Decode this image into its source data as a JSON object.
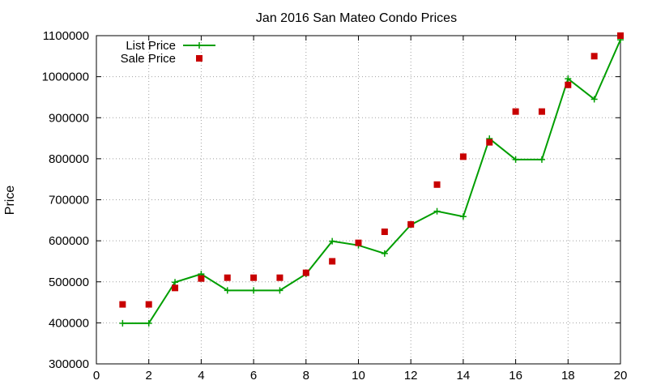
{
  "chart_data": {
    "type": "line",
    "title": "Jan 2016 San Mateo Condo Prices",
    "xlabel": "",
    "ylabel": "Price",
    "xlim": [
      0,
      20
    ],
    "ylim": [
      300000,
      1100000
    ],
    "xticks": [
      0,
      2,
      4,
      6,
      8,
      10,
      12,
      14,
      16,
      18,
      20
    ],
    "yticks": [
      300000,
      400000,
      500000,
      600000,
      700000,
      800000,
      900000,
      1000000,
      1100000
    ],
    "grid": true,
    "legend_position": "top-left",
    "series": [
      {
        "name": "List Price",
        "style": "lines+points",
        "marker": "plus",
        "color": "#009e00",
        "x": [
          1,
          2,
          3,
          4,
          5,
          6,
          7,
          8,
          9,
          10,
          11,
          12,
          13,
          14,
          15,
          16,
          17,
          18,
          19,
          20
        ],
        "y": [
          399000,
          399000,
          499000,
          519000,
          479000,
          479000,
          479000,
          519000,
          599000,
          589000,
          569000,
          639000,
          672000,
          659000,
          849000,
          798000,
          798000,
          995000,
          945000,
          1090000
        ]
      },
      {
        "name": "Sale Price",
        "style": "points",
        "marker": "square",
        "color": "#c80000",
        "x": [
          1,
          2,
          3,
          4,
          5,
          6,
          7,
          8,
          9,
          10,
          11,
          12,
          13,
          14,
          15,
          16,
          17,
          18,
          19,
          20
        ],
        "y": [
          445000,
          445000,
          485000,
          508000,
          510000,
          510000,
          510000,
          522000,
          550000,
          595000,
          622000,
          640000,
          737000,
          805000,
          840000,
          915000,
          915000,
          980000,
          1050000,
          1100000
        ]
      }
    ]
  }
}
